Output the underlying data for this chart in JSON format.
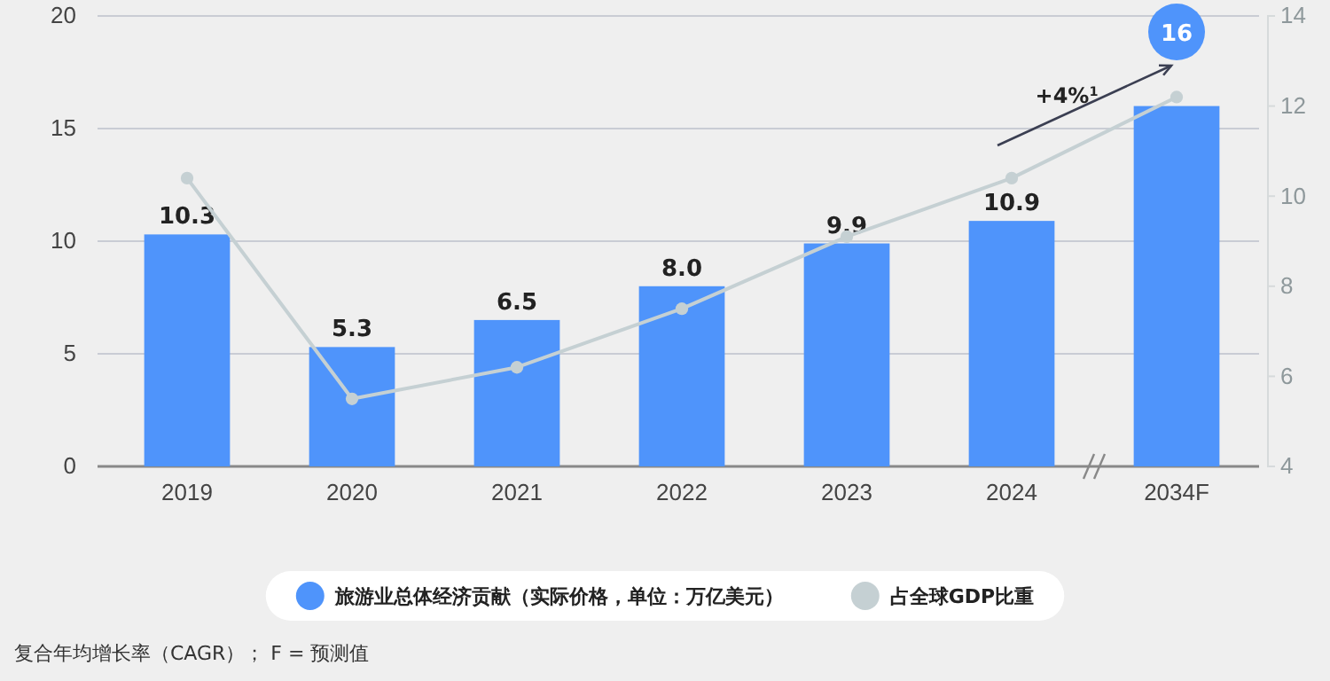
{
  "chart_data": {
    "type": "bar",
    "categories": [
      "2019",
      "2020",
      "2021",
      "2022",
      "2023",
      "2024",
      "2034F"
    ],
    "series": [
      {
        "name": "旅游业总体经济贡献（实际价格，单位：万亿美元）",
        "color": "#4f94fb",
        "values": [
          10.3,
          5.3,
          6.5,
          8.0,
          9.9,
          10.9,
          16
        ],
        "value_labels": [
          "10.3",
          "5.3",
          "6.5",
          "8.0",
          "9.9",
          "10.9",
          "16"
        ]
      },
      {
        "name": "占全球GDP比重",
        "type": "line",
        "axis": "y2",
        "color": "#c5d0d3",
        "values": [
          10.4,
          5.5,
          6.2,
          7.5,
          9.1,
          10.4,
          12.2
        ]
      }
    ],
    "ylim": [
      0,
      20
    ],
    "yticks": [
      0,
      5,
      10,
      15,
      20
    ],
    "y2lim": [
      4,
      14
    ],
    "y2ticks": [
      4,
      6,
      8,
      10,
      12,
      14
    ],
    "grid": "y",
    "legend": "bottom",
    "marker": "circle",
    "annotations": [
      "+4%$^{1}$",
      "复合年均增长率（CAGR）； F = 预测值"
    ]
  }
}
